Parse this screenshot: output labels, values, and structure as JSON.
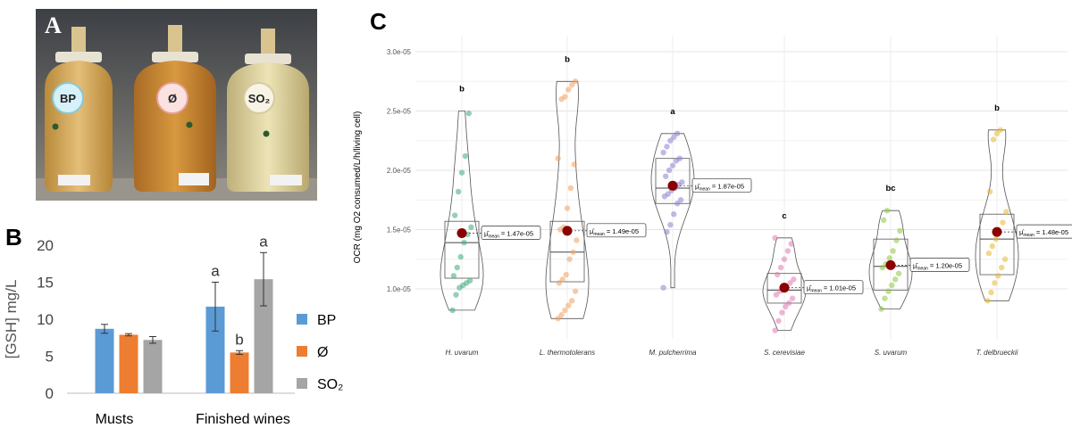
{
  "panels": {
    "a": "A",
    "b": "B",
    "c": "C"
  },
  "photo": {
    "bottle_labels": [
      "BP",
      "Ø",
      "SO₂"
    ]
  },
  "chart_data": [
    {
      "type": "bar",
      "panel": "B",
      "categories": [
        "Musts",
        "Finished wines"
      ],
      "series": [
        {
          "name": "BP",
          "color": "#5B9BD5",
          "values": [
            8.7,
            11.7
          ],
          "errors": [
            0.6,
            3.3
          ]
        },
        {
          "name": "Ø",
          "color": "#ED7D31",
          "values": [
            7.9,
            5.5
          ],
          "errors": [
            0.15,
            0.25
          ]
        },
        {
          "name": "SO₂",
          "color": "#A5A5A5",
          "values": [
            7.2,
            15.4
          ],
          "errors": [
            0.45,
            3.6
          ]
        }
      ],
      "annotations": [
        {
          "category": 1,
          "series": 0,
          "text": "a"
        },
        {
          "category": 1,
          "series": 1,
          "text": "b"
        },
        {
          "category": 1,
          "series": 2,
          "text": "a"
        }
      ],
      "ylabel": "[GSH] mg/L",
      "ylim": [
        0,
        20
      ],
      "yticks": [
        "0",
        "5",
        "10",
        "15",
        "20"
      ],
      "legend": "right",
      "grid": false
    },
    {
      "type": "violin",
      "panel": "C",
      "ylabel": "OCR (mg O2 consumed/L/h/living cell)",
      "ylim": [
        6e-06,
        3e-05
      ],
      "yticks": [
        {
          "value": 1e-05,
          "label": "1.0e-05"
        },
        {
          "value": 1.5e-05,
          "label": "1.5e-05"
        },
        {
          "value": 2e-05,
          "label": "2.0e-05"
        },
        {
          "value": 2.5e-05,
          "label": "2.5e-05"
        },
        {
          "value": 3e-05,
          "label": "3.0e-05"
        }
      ],
      "grid": true,
      "categories": [
        {
          "name": "H. uvarum",
          "color": "#3DAA7A",
          "group": "b",
          "mean": 1.47e-05,
          "mean_label": "= 1.47e-05",
          "q1": 1.09e-05,
          "median": 1.39e-05,
          "q3": 1.57e-05,
          "min": 8.2e-06,
          "max": 2.5e-05,
          "points": [
            8.2e-06,
            9.5e-06,
            1.01e-05,
            1.03e-05,
            1.05e-05,
            1.07e-05,
            1.11e-05,
            1.18e-05,
            1.27e-05,
            1.39e-05,
            1.46e-05,
            1.52e-05,
            1.62e-05,
            1.82e-05,
            1.98e-05,
            2.12e-05,
            2.48e-05
          ]
        },
        {
          "name": "L. thermotolerans",
          "color": "#F0A060",
          "group": "b",
          "mean": 1.49e-05,
          "mean_label": "= 1.49e-05",
          "q1": 1.06e-05,
          "median": 1.31e-05,
          "q3": 1.57e-05,
          "min": 7.5e-06,
          "max": 2.75e-05,
          "points": [
            7.5e-06,
            7.8e-06,
            8.2e-06,
            8.6e-06,
            9e-06,
            9.8e-06,
            1.05e-05,
            1.08e-05,
            1.12e-05,
            1.25e-05,
            1.31e-05,
            1.41e-05,
            1.5e-05,
            1.52e-05,
            1.68e-05,
            1.85e-05,
            2.05e-05,
            2.1e-05,
            2.6e-05,
            2.62e-05,
            2.68e-05,
            2.72e-05,
            2.75e-05
          ]
        },
        {
          "name": "M. pulcherrima",
          "color": "#8C7FD0",
          "group": "a",
          "mean": 1.87e-05,
          "mean_label": "= 1.87e-05",
          "q1": 1.72e-05,
          "median": 1.85e-05,
          "q3": 2.1e-05,
          "min": 1.01e-05,
          "max": 2.31e-05,
          "points": [
            1.01e-05,
            1.48e-05,
            1.54e-05,
            1.63e-05,
            1.72e-05,
            1.75e-05,
            1.78e-05,
            1.8e-05,
            1.83e-05,
            1.85e-05,
            1.88e-05,
            1.9e-05,
            1.95e-05,
            2e-05,
            2.04e-05,
            2.08e-05,
            2.1e-05,
            2.15e-05,
            2.2e-05,
            2.25e-05,
            2.28e-05,
            2.31e-05
          ]
        },
        {
          "name": "S. cerevisiae",
          "color": "#E07AB0",
          "group": "c",
          "mean": 1.01e-05,
          "mean_label": "= 1.01e-05",
          "q1": 8.8e-06,
          "median": 9.9e-06,
          "q3": 1.13e-05,
          "min": 6.5e-06,
          "max": 1.43e-05,
          "points": [
            6.5e-06,
            7.3e-06,
            8e-06,
            8.5e-06,
            8.8e-06,
            9.2e-06,
            9.5e-06,
            9.8e-06,
            9.9e-06,
            1.01e-05,
            1.05e-05,
            1.08e-05,
            1.12e-05,
            1.18e-05,
            1.25e-05,
            1.32e-05,
            1.38e-05,
            1.43e-05
          ]
        },
        {
          "name": "S. uvarum",
          "color": "#8CC63E",
          "group": "bc",
          "mean": 1.2e-05,
          "mean_label": "= 1.20e-05",
          "q1": 9.9e-06,
          "median": 1.19e-05,
          "q3": 1.42e-05,
          "min": 8.3e-06,
          "max": 1.66e-05,
          "points": [
            8.3e-06,
            9.2e-06,
            9.8e-06,
            1.03e-05,
            1.08e-05,
            1.13e-05,
            1.18e-05,
            1.21e-05,
            1.26e-05,
            1.32e-05,
            1.41e-05,
            1.49e-05,
            1.58e-05,
            1.66e-05
          ]
        },
        {
          "name": "T. delbrueckii",
          "color": "#E8B830",
          "group": "b",
          "mean": 1.48e-05,
          "mean_label": "= 1.48e-05",
          "q1": 1.12e-05,
          "median": 1.42e-05,
          "q3": 1.63e-05,
          "min": 9e-06,
          "max": 2.34e-05,
          "points": [
            9e-06,
            9.7e-06,
            1.05e-05,
            1.11e-05,
            1.18e-05,
            1.25e-05,
            1.3e-05,
            1.36e-05,
            1.42e-05,
            1.48e-05,
            1.56e-05,
            1.65e-05,
            1.82e-05,
            2.26e-05,
            2.31e-05,
            2.34e-05
          ]
        }
      ],
      "mean_symbol": "μ̂",
      "mean_subscript": "mean"
    }
  ]
}
